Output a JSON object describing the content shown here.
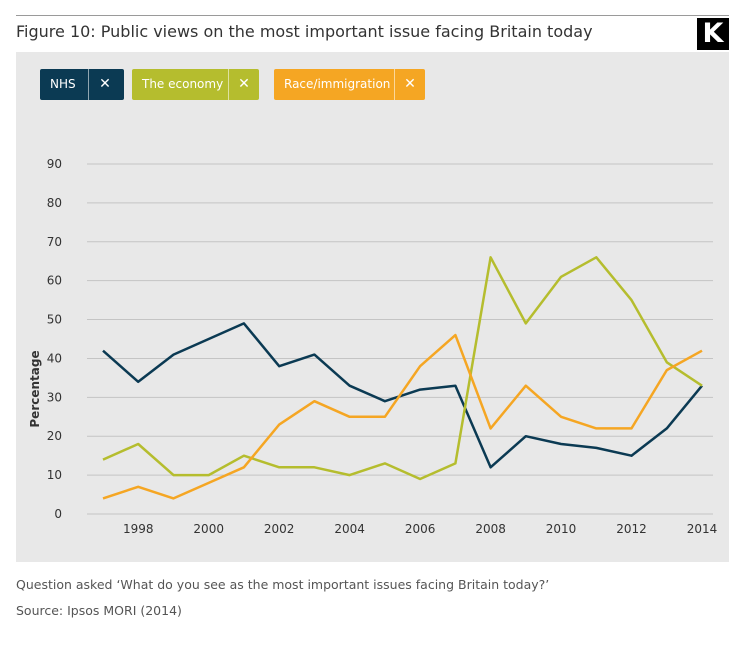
{
  "header": {
    "title": "Figure 10: Public views on the most important issue facing Britain today",
    "logo_letter": "K"
  },
  "legend": {
    "items": [
      {
        "label": "NHS",
        "color": "#0b3a53",
        "close_icon": "close-icon"
      },
      {
        "label": "The economy",
        "color": "#b5bd2e",
        "close_icon": "close-icon"
      },
      {
        "label": "Race/immigration",
        "color": "#f5a623",
        "close_icon": "close-icon"
      }
    ],
    "close_glyph": "✕"
  },
  "footer": {
    "question": "Question asked ‘What do you see as the most important issues facing Britain today?’",
    "source": "Source: Ipsos MORI (2014)"
  },
  "chart_data": {
    "type": "line",
    "title": "Figure 10: Public views on the most important issue facing Britain today",
    "xlabel": "",
    "ylabel": "Percentage",
    "x": [
      1997,
      1998,
      1999,
      2000,
      2001,
      2002,
      2003,
      2004,
      2005,
      2006,
      2007,
      2008,
      2009,
      2010,
      2011,
      2012,
      2013,
      2014
    ],
    "xticks": [
      1998,
      2000,
      2002,
      2004,
      2006,
      2008,
      2010,
      2012,
      2014
    ],
    "xlim": [
      1997,
      2014
    ],
    "ylim": [
      0,
      90
    ],
    "yticks": [
      0,
      10,
      20,
      30,
      40,
      50,
      60,
      70,
      80,
      90
    ],
    "grid": true,
    "legend_position": "top-left",
    "series": [
      {
        "name": "NHS",
        "color": "#0b3a53",
        "values": [
          42,
          34,
          41,
          45,
          49,
          38,
          41,
          33,
          29,
          32,
          33,
          12,
          20,
          18,
          17,
          15,
          22,
          33
        ]
      },
      {
        "name": "The economy",
        "color": "#b5bd2e",
        "values": [
          14,
          18,
          10,
          10,
          15,
          12,
          12,
          10,
          13,
          9,
          13,
          66,
          49,
          61,
          66,
          55,
          39,
          33
        ]
      },
      {
        "name": "Race/immigration",
        "color": "#f5a623",
        "values": [
          4,
          7,
          4,
          8,
          12,
          23,
          29,
          25,
          25,
          38,
          46,
          22,
          33,
          25,
          22,
          22,
          37,
          42
        ]
      }
    ]
  }
}
